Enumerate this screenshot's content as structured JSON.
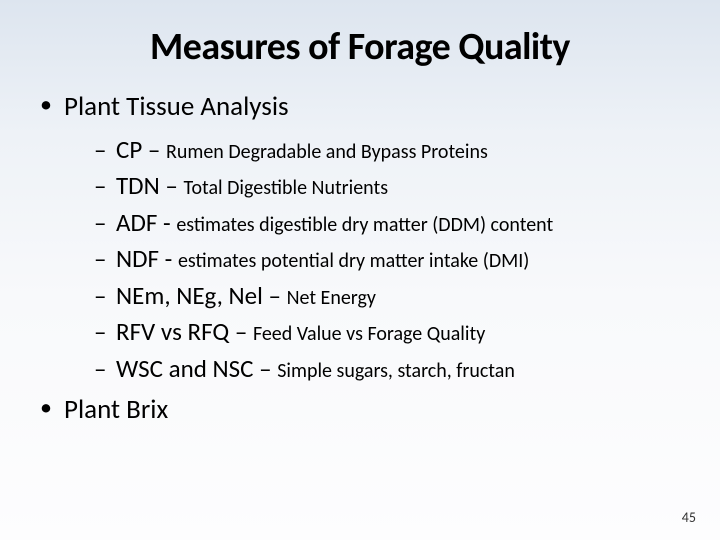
{
  "title": "Measures of Forage Quality",
  "bullets": {
    "item1": "Plant Tissue Analysis",
    "item2": "Plant Brix",
    "sub": {
      "s1_abbr": "CP ",
      "s1_sep": "– ",
      "s1_desc": "Rumen Degradable and Bypass Proteins",
      "s2_abbr": "TDN ",
      "s2_sep": "– ",
      "s2_desc": "Total Digestible Nutrients",
      "s3_abbr": "ADF ",
      "s3_sep": "- ",
      "s3_desc": "estimates digestible dry matter (DDM) content",
      "s4_abbr": "NDF ",
      "s4_sep": "- ",
      "s4_desc": "estimates potential dry matter intake (DMI)",
      "s5_abbr": "NEm, NEg, Nel ",
      "s5_sep": "– ",
      "s5_desc": "Net Energy",
      "s6_abbr": "RFV vs RFQ ",
      "s6_sep": "– ",
      "s6_desc": "Feed Value vs Forage Quality",
      "s7_abbr": "WSC and NSC ",
      "s7_sep": "– ",
      "s7_desc": "Simple sugars, starch, fructan"
    }
  },
  "page_number": "45",
  "style": {
    "background_gradient": [
      "#dde5ef",
      "#eef2f7",
      "#f8f9fb",
      "#fdfdfe"
    ],
    "title_fontsize": 38,
    "level1_fontsize": 27,
    "level2_abbr_fontsize": 25,
    "level2_desc_fontsize": 20,
    "text_color": "#000000",
    "font_family": "Calibri"
  }
}
